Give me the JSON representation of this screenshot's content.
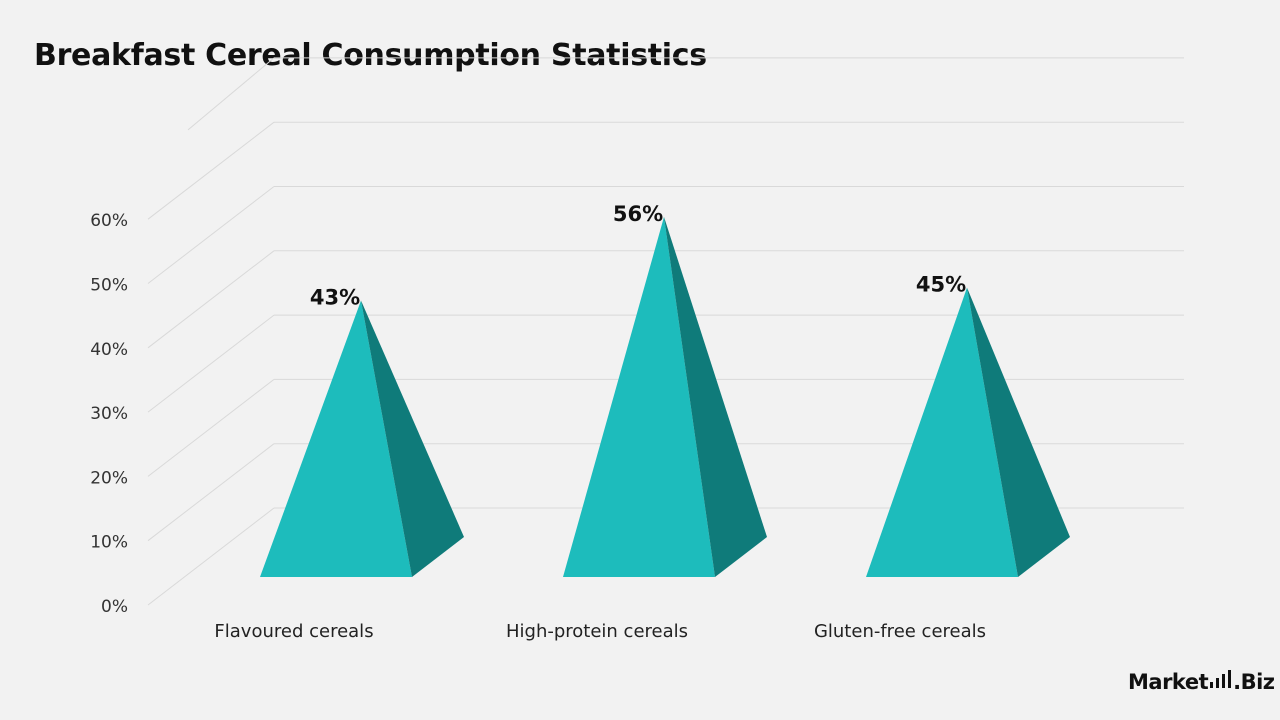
{
  "title": "Breakfast Cereal Consumption Statistics",
  "brand": {
    "prefix": "Market",
    "suffix": ".Biz"
  },
  "colors": {
    "front": "#1dbcbc",
    "side": "#0f7b7a",
    "grid": "#d9d9d9",
    "background": "#f2f2f2"
  },
  "chart_data": {
    "type": "bar",
    "style": "3d-pyramid",
    "title": "Breakfast Cereal Consumption Statistics",
    "categories": [
      "Flavoured cereals",
      "High-protein cereals",
      "Gluten-free cereals"
    ],
    "values": [
      43,
      56,
      45
    ],
    "data_labels": [
      "43%",
      "56%",
      "45%"
    ],
    "yticks": [
      "0%",
      "10%",
      "20%",
      "30%",
      "40%",
      "50%",
      "60%"
    ],
    "ylim": [
      0,
      70
    ],
    "xlabel": "",
    "ylabel": "",
    "grid": true,
    "legend": "none"
  }
}
